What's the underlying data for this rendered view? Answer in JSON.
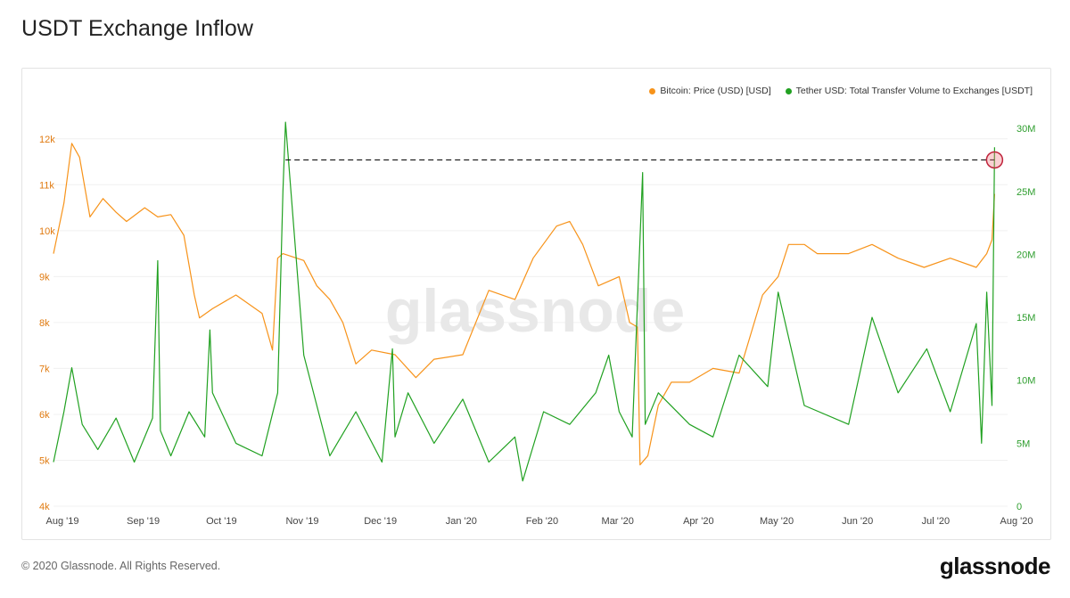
{
  "header": {
    "title": "USDT Exchange Inflow"
  },
  "footer": {
    "copyright": "© 2020 Glassnode. All Rights Reserved.",
    "logo_text": "glassnode"
  },
  "watermark": "glassnode",
  "legend": [
    {
      "label": "Bitcoin: Price (USD) [USD]",
      "color": "#f7931a"
    },
    {
      "label": "Tether USD: Total Transfer Volume to Exchanges [USDT]",
      "color": "#21a121"
    }
  ],
  "chart_data": {
    "type": "line",
    "x_ticks": [
      "Aug '19",
      "Sep '19",
      "Oct '19",
      "Nov '19",
      "Dec '19",
      "Jan '20",
      "Feb '20",
      "Mar '20",
      "Apr '20",
      "May '20",
      "Jun '20",
      "Jul '20",
      "Aug '20"
    ],
    "y_left": {
      "ticks": [
        "4k",
        "5k",
        "6k",
        "7k",
        "8k",
        "9k",
        "10k",
        "11k",
        "12k"
      ],
      "range": [
        4000,
        12500
      ]
    },
    "y_right": {
      "ticks": [
        "0",
        "5M",
        "10M",
        "15M",
        "20M",
        "25M",
        "30M"
      ],
      "range": [
        0,
        31000000
      ]
    },
    "series": [
      {
        "name": "Bitcoin: Price (USD) [USD]",
        "axis": "left",
        "color": "#f7931a",
        "x": [
          "2019-08-01",
          "2019-08-05",
          "2019-08-08",
          "2019-08-11",
          "2019-08-15",
          "2019-08-20",
          "2019-08-25",
          "2019-08-29",
          "2019-09-05",
          "2019-09-10",
          "2019-09-15",
          "2019-09-20",
          "2019-09-24",
          "2019-09-26",
          "2019-10-01",
          "2019-10-10",
          "2019-10-20",
          "2019-10-24",
          "2019-10-26",
          "2019-10-28",
          "2019-11-05",
          "2019-11-10",
          "2019-11-15",
          "2019-11-20",
          "2019-11-25",
          "2019-12-01",
          "2019-12-10",
          "2019-12-18",
          "2019-12-25",
          "2020-01-05",
          "2020-01-15",
          "2020-01-25",
          "2020-02-01",
          "2020-02-10",
          "2020-02-15",
          "2020-02-20",
          "2020-02-26",
          "2020-03-05",
          "2020-03-09",
          "2020-03-12",
          "2020-03-13",
          "2020-03-16",
          "2020-03-20",
          "2020-03-25",
          "2020-04-01",
          "2020-04-10",
          "2020-04-20",
          "2020-04-29",
          "2020-05-05",
          "2020-05-09",
          "2020-05-15",
          "2020-05-20",
          "2020-05-28",
          "2020-06-01",
          "2020-06-10",
          "2020-06-20",
          "2020-06-30",
          "2020-07-10",
          "2020-07-20",
          "2020-07-24",
          "2020-07-26",
          "2020-07-27"
        ],
        "y": [
          9500,
          10600,
          11900,
          11600,
          10300,
          10700,
          10400,
          10200,
          10500,
          10300,
          10350,
          9900,
          8600,
          8100,
          8300,
          8600,
          8200,
          7400,
          9400,
          9500,
          9350,
          8800,
          8500,
          8000,
          7100,
          7400,
          7300,
          6800,
          7200,
          7300,
          8700,
          8500,
          9400,
          10100,
          10200,
          9700,
          8800,
          9000,
          8000,
          7900,
          4900,
          5100,
          6200,
          6700,
          6700,
          7000,
          6900,
          8600,
          9000,
          9700,
          9700,
          9500,
          9500,
          9500,
          9700,
          9400,
          9200,
          9400,
          9200,
          9500,
          9800,
          10800
        ]
      },
      {
        "name": "Tether USD: Total Transfer Volume to Exchanges [USDT]",
        "axis": "right",
        "color": "#21a121",
        "x": [
          "2019-08-01",
          "2019-08-05",
          "2019-08-08",
          "2019-08-12",
          "2019-08-18",
          "2019-08-25",
          "2019-09-01",
          "2019-09-08",
          "2019-09-10",
          "2019-09-11",
          "2019-09-15",
          "2019-09-22",
          "2019-09-28",
          "2019-09-30",
          "2019-10-01",
          "2019-10-10",
          "2019-10-20",
          "2019-10-26",
          "2019-10-28",
          "2019-10-29",
          "2019-11-05",
          "2019-11-15",
          "2019-11-25",
          "2019-12-05",
          "2019-12-09",
          "2019-12-10",
          "2019-12-15",
          "2019-12-25",
          "2020-01-05",
          "2020-01-15",
          "2020-01-25",
          "2020-01-28",
          "2020-02-05",
          "2020-02-15",
          "2020-02-25",
          "2020-03-01",
          "2020-03-05",
          "2020-03-10",
          "2020-03-14",
          "2020-03-15",
          "2020-03-20",
          "2020-04-01",
          "2020-04-10",
          "2020-04-20",
          "2020-05-01",
          "2020-05-05",
          "2020-05-15",
          "2020-06-01",
          "2020-06-10",
          "2020-06-20",
          "2020-07-01",
          "2020-07-10",
          "2020-07-20",
          "2020-07-22",
          "2020-07-24",
          "2020-07-26",
          "2020-07-27"
        ],
        "y": [
          3500000,
          7500000,
          11000000,
          6500000,
          4500000,
          7000000,
          3500000,
          7000000,
          19500000,
          6000000,
          4000000,
          7500000,
          5500000,
          14000000,
          9000000,
          5000000,
          4000000,
          9000000,
          25000000,
          30500000,
          12000000,
          4000000,
          7500000,
          3500000,
          12500000,
          5500000,
          9000000,
          5000000,
          8500000,
          3500000,
          5500000,
          2000000,
          7500000,
          6500000,
          9000000,
          12000000,
          7500000,
          5500000,
          26500000,
          6500000,
          9000000,
          6500000,
          5500000,
          12000000,
          9500000,
          17000000,
          8000000,
          6500000,
          15000000,
          9000000,
          12500000,
          7500000,
          14500000,
          5000000,
          17000000,
          8000000,
          28500000
        ]
      }
    ],
    "annotation": {
      "type": "reference-line",
      "from_date": "2019-10-29",
      "to_date": "2020-07-27",
      "value": 27500000,
      "marker": "circle"
    }
  }
}
